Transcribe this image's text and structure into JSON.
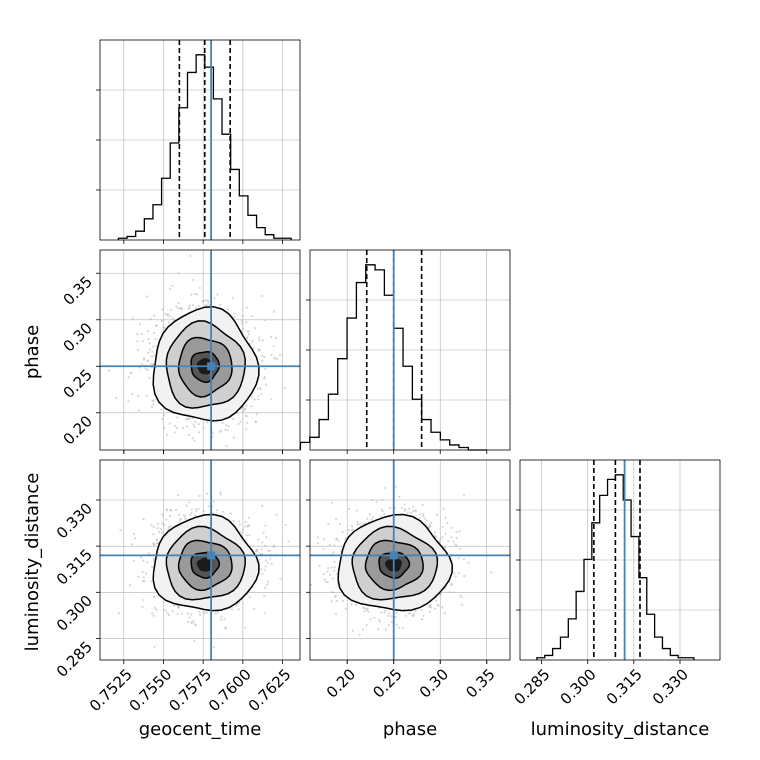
{
  "chart_data": {
    "type": "corner",
    "parameters": [
      "geocent_time",
      "phase",
      "luminosity_distance"
    ],
    "truths": {
      "geocent_time": 0.758,
      "phase": 0.25,
      "luminosity_distance": 0.312
    },
    "quantiles": {
      "geocent_time": [
        0.756,
        0.7576,
        0.7592
      ],
      "phase": [
        0.221,
        0.25,
        0.28
      ],
      "luminosity_distance": [
        0.302,
        0.309,
        0.317
      ]
    },
    "ranges": {
      "geocent_time": [
        0.751,
        0.7636
      ],
      "phase": [
        0.16,
        0.375
      ],
      "luminosity_distance": [
        0.278,
        0.343
      ]
    },
    "ticks": {
      "geocent_time": [
        {
          "value": 0.7525,
          "label": "0.7525"
        },
        {
          "value": 0.755,
          "label": "0.7550"
        },
        {
          "value": 0.7575,
          "label": "0.7575"
        },
        {
          "value": 0.76,
          "label": "0.7600"
        },
        {
          "value": 0.7625,
          "label": "0.7625"
        }
      ],
      "phase": [
        {
          "value": 0.2,
          "label": "0.20"
        },
        {
          "value": 0.25,
          "label": "0.25"
        },
        {
          "value": 0.3,
          "label": "0.30"
        },
        {
          "value": 0.35,
          "label": "0.35"
        }
      ],
      "luminosity_distance": [
        {
          "value": 0.285,
          "label": "0.285"
        },
        {
          "value": 0.3,
          "label": "0.300"
        },
        {
          "value": 0.315,
          "label": "0.315"
        },
        {
          "value": 0.33,
          "label": "0.330"
        }
      ]
    },
    "histograms": {
      "geocent_time": [
        1,
        2,
        5,
        12,
        20,
        35,
        55,
        75,
        95,
        105,
        98,
        80,
        60,
        40,
        25,
        14,
        7,
        3,
        1,
        1
      ],
      "phase": [
        3,
        5,
        12,
        22,
        36,
        52,
        66,
        73,
        71,
        61,
        48,
        33,
        20,
        12,
        7,
        4,
        2,
        1,
        0,
        0
      ],
      "luminosity_distance": [
        1,
        2,
        5,
        10,
        18,
        30,
        44,
        60,
        72,
        79,
        81,
        70,
        54,
        36,
        20,
        10,
        5,
        2,
        1,
        1
      ]
    },
    "axis_labels": {
      "geocent_time": "geocent_time",
      "phase": "phase",
      "luminosity_distance": "luminosity_distance"
    },
    "colors": {
      "truth": "#4682b4",
      "hist": "#000000",
      "grid": "#b0b0b0"
    }
  }
}
